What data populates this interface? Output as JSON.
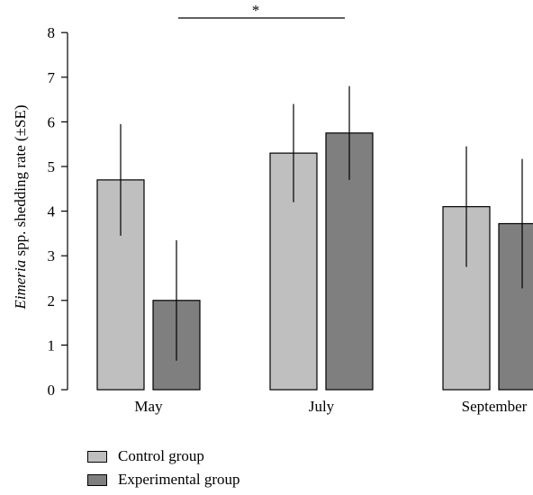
{
  "chart_data": {
    "type": "bar",
    "categories": [
      "May",
      "July",
      "September"
    ],
    "series": [
      {
        "name": "Control group",
        "color": "#bfbfbf",
        "values": [
          4.7,
          5.3,
          4.1
        ],
        "errors": [
          1.25,
          1.1,
          1.35
        ]
      },
      {
        "name": "Experimental group",
        "color": "#7f7f7f",
        "values": [
          2.0,
          5.75,
          3.72
        ],
        "errors": [
          1.35,
          1.05,
          1.45
        ]
      }
    ],
    "ylabel_italic": "Eimeria",
    "ylabel_rest": " spp. shedding rate (±SE)",
    "ylim": [
      0,
      8
    ],
    "yticks": [
      "0",
      "1",
      "2",
      "3",
      "4",
      "5",
      "6",
      "7",
      "8"
    ],
    "significance": {
      "label": "*",
      "between": [
        "May",
        "July"
      ]
    },
    "legend_position": "bottom-left"
  }
}
